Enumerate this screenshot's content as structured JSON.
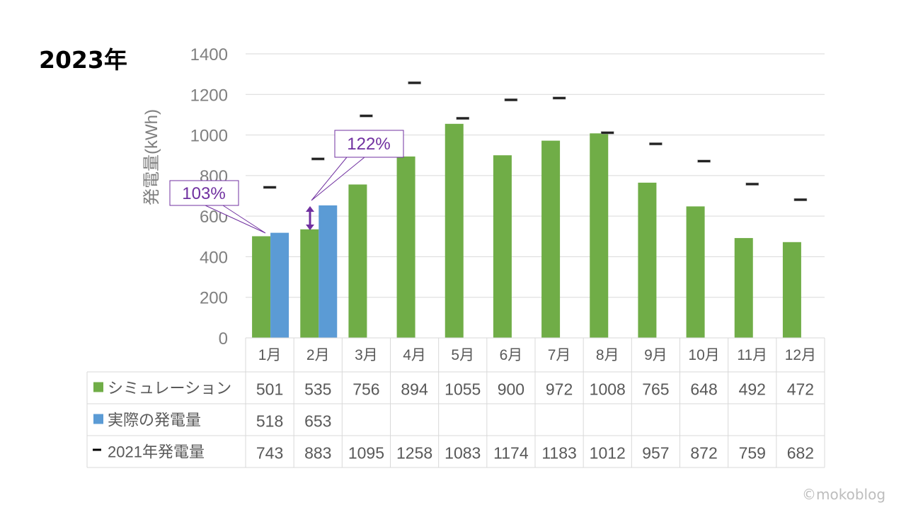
{
  "page_title": "2023年",
  "watermark": "©mokoblog",
  "colors": {
    "simulation": "#70ad47",
    "actual": "#5b9bd5",
    "y2021": "#000000",
    "callout": "#7030a0"
  },
  "chart_data": {
    "type": "bar",
    "title": "2023年",
    "ylabel": "発電量(kWh)",
    "xlabel": "",
    "ylim": [
      0,
      1400
    ],
    "yticks": [
      0,
      200,
      400,
      600,
      800,
      1000,
      1200,
      1400
    ],
    "grid": true,
    "legend": "data-table-left",
    "categories": [
      "1月",
      "2月",
      "3月",
      "4月",
      "5月",
      "6月",
      "7月",
      "8月",
      "9月",
      "10月",
      "11月",
      "12月"
    ],
    "series": [
      {
        "name": "シミュレーション",
        "kind": "bar",
        "values": [
          501,
          535,
          756,
          894,
          1055,
          900,
          972,
          1008,
          765,
          648,
          492,
          472
        ]
      },
      {
        "name": "実際の発電量",
        "kind": "bar",
        "values": [
          518,
          653,
          null,
          null,
          null,
          null,
          null,
          null,
          null,
          null,
          null,
          null
        ]
      },
      {
        "name": "2021年発電量",
        "kind": "marker",
        "values": [
          743,
          883,
          1095,
          1258,
          1083,
          1174,
          1183,
          1012,
          957,
          872,
          759,
          682
        ]
      }
    ],
    "annotations": [
      {
        "text": "103%",
        "month": "1月"
      },
      {
        "text": "122%",
        "month": "2月"
      }
    ]
  }
}
